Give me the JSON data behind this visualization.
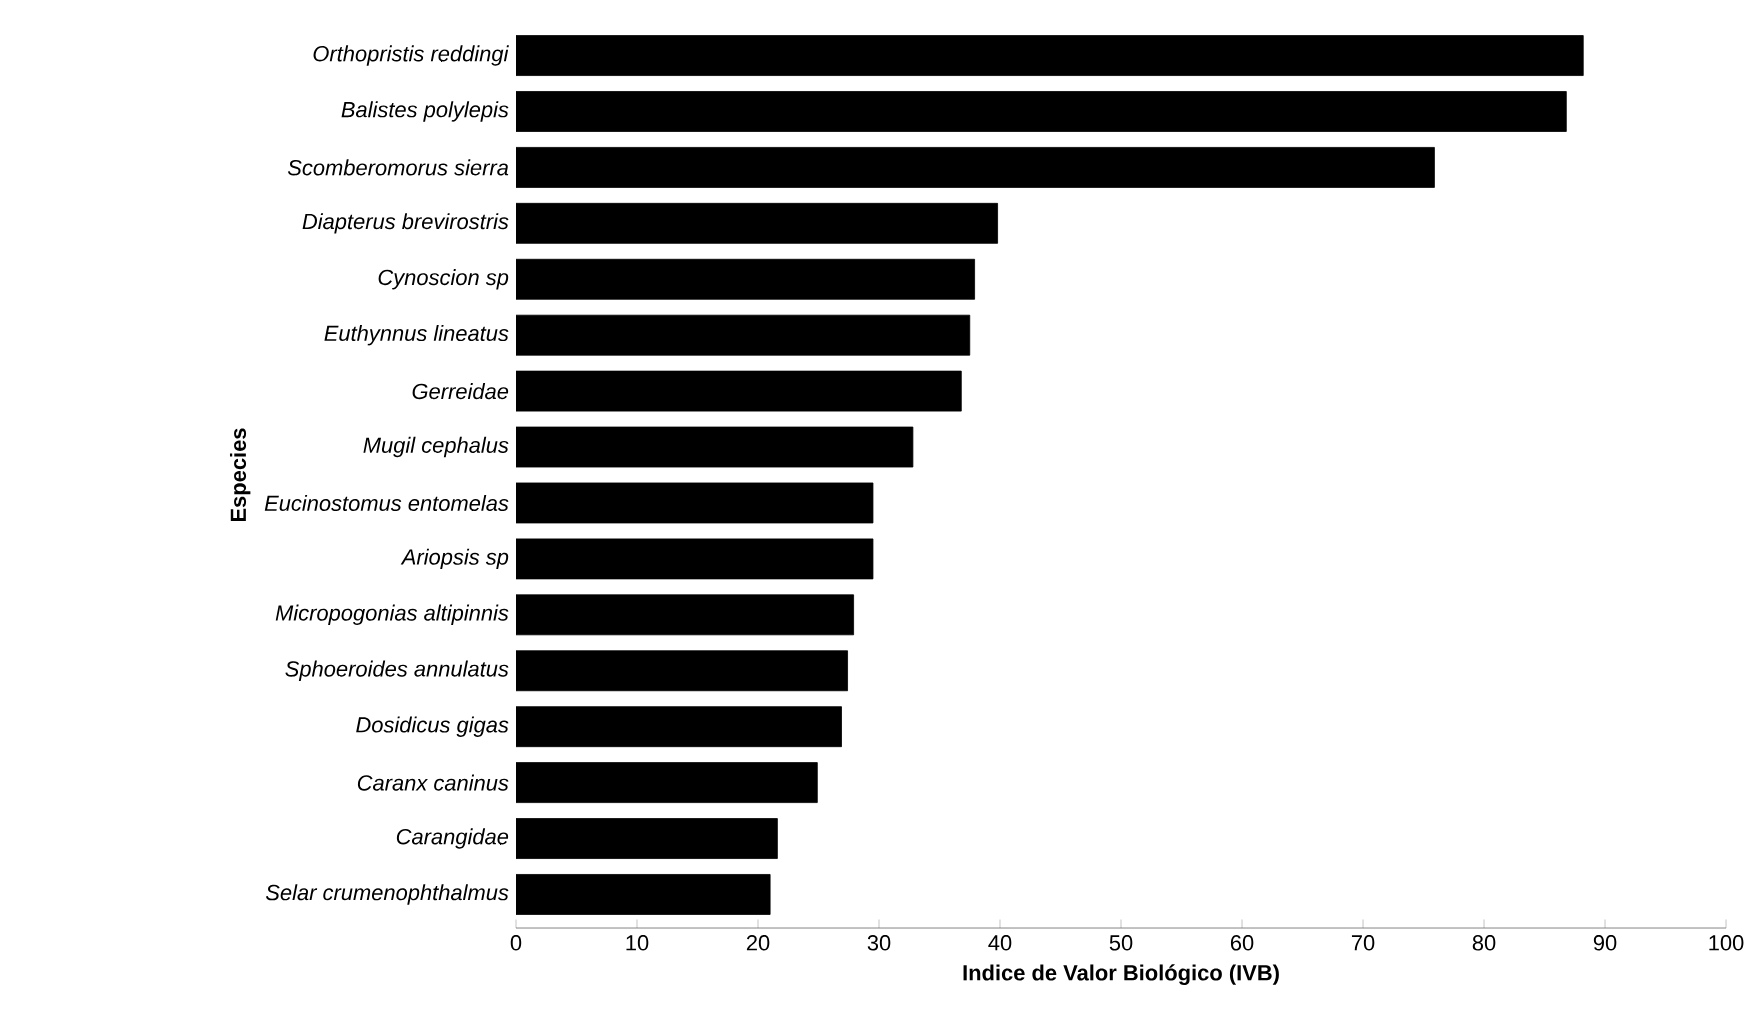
{
  "chart_data": {
    "type": "bar",
    "orientation": "horizontal",
    "xlabel": "Indice de Valor Biológico (IVB)",
    "ylabel": "Especies",
    "categories": [
      "*Orthopristis reddingi*",
      "*Balistes polylepis*",
      "*Scomberomorus sierra*",
      "*Diapterus brevirostris*",
      "*Cynoscion sp*",
      "*Euthynnus lineatus*",
      "*Gerreidae*",
      "*Mugil cephalus*",
      "*Eucinostomus entomelas*",
      "*Ariopsis sp*",
      "*Micropogonias altipinnis*",
      "*Sphoeroides annulatus*",
      "*Dosidicus gigas*",
      "*Caranx caninus*",
      "*Carangidae*",
      "*Selar crumenophthalmus*"
    ],
    "values": [
      88.2,
      86.8,
      75.9,
      39.8,
      37.9,
      37.5,
      36.8,
      32.8,
      29.5,
      29.5,
      27.9,
      27.4,
      26.9,
      24.9,
      21.6,
      21.0
    ],
    "color": "#000000",
    "xlim": [
      0,
      100
    ],
    "xticks": [
      0,
      10,
      20,
      30,
      40,
      50,
      60,
      70,
      80,
      90,
      100
    ]
  }
}
